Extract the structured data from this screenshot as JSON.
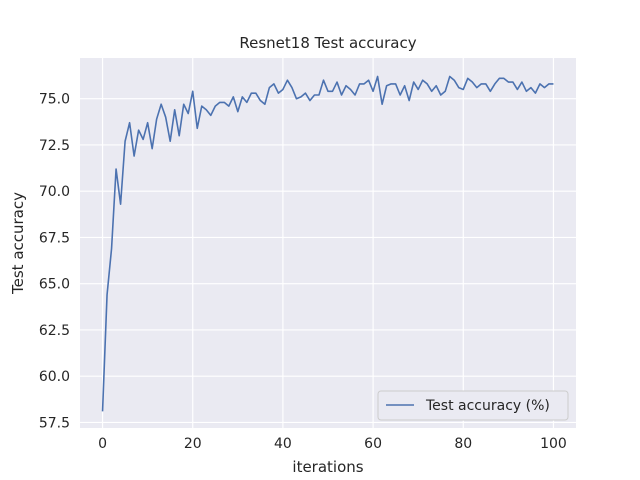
{
  "chart_data": {
    "type": "line",
    "title": "Resnet18 Test accuracy",
    "xlabel": "iterations",
    "ylabel": "Test accuracy",
    "xlim": [
      -5,
      105
    ],
    "ylim": [
      57.2,
      77.2
    ],
    "xticks": [
      0,
      20,
      40,
      60,
      80,
      100
    ],
    "yticks": [
      57.5,
      60.0,
      62.5,
      65.0,
      67.5,
      70.0,
      72.5,
      75.0
    ],
    "xtick_labels": [
      "0",
      "20",
      "40",
      "60",
      "80",
      "100"
    ],
    "ytick_labels": [
      "57.5",
      "60.0",
      "62.5",
      "65.0",
      "67.5",
      "70.0",
      "72.5",
      "75.0"
    ],
    "grid": true,
    "legend": {
      "position": "lower-right"
    },
    "series": [
      {
        "name": "Test accuracy (%)",
        "color": "#4c72b0",
        "x": [
          0,
          1,
          2,
          3,
          4,
          5,
          6,
          7,
          8,
          9,
          10,
          11,
          12,
          13,
          14,
          15,
          16,
          17,
          18,
          19,
          20,
          21,
          22,
          23,
          24,
          25,
          26,
          27,
          28,
          29,
          30,
          31,
          32,
          33,
          34,
          35,
          36,
          37,
          38,
          39,
          40,
          41,
          42,
          43,
          44,
          45,
          46,
          47,
          48,
          49,
          50,
          51,
          52,
          53,
          54,
          55,
          56,
          57,
          58,
          59,
          60,
          61,
          62,
          63,
          64,
          65,
          66,
          67,
          68,
          69,
          70,
          71,
          72,
          73,
          74,
          75,
          76,
          77,
          78,
          79,
          80,
          81,
          82,
          83,
          84,
          85,
          86,
          87,
          88,
          89,
          90,
          91,
          92,
          93,
          94,
          95,
          96,
          97,
          98,
          99,
          100
        ],
        "values": [
          58.1,
          64.4,
          66.9,
          71.2,
          69.3,
          72.7,
          73.7,
          71.9,
          73.3,
          72.8,
          73.7,
          72.3,
          73.9,
          74.7,
          74.0,
          72.7,
          74.4,
          73.0,
          74.7,
          74.2,
          75.4,
          73.4,
          74.6,
          74.4,
          74.1,
          74.6,
          74.8,
          74.8,
          74.6,
          75.1,
          74.3,
          75.1,
          74.8,
          75.3,
          75.3,
          74.9,
          74.7,
          75.6,
          75.8,
          75.3,
          75.5,
          76.0,
          75.6,
          75.0,
          75.1,
          75.3,
          74.9,
          75.2,
          75.2,
          76.0,
          75.4,
          75.4,
          75.9,
          75.2,
          75.7,
          75.5,
          75.2,
          75.8,
          75.8,
          76.0,
          75.4,
          76.2,
          74.7,
          75.7,
          75.8,
          75.8,
          75.2,
          75.7,
          74.9,
          75.9,
          75.5,
          76.0,
          75.8,
          75.4,
          75.7,
          75.2,
          75.4,
          76.2,
          76.0,
          75.6,
          75.5,
          76.1,
          75.9,
          75.6,
          75.8,
          75.8,
          75.4,
          75.8,
          76.1,
          76.1,
          75.9,
          75.9,
          75.5,
          75.9,
          75.4,
          75.6,
          75.3,
          75.8,
          75.6,
          75.8,
          75.8
        ]
      }
    ]
  }
}
